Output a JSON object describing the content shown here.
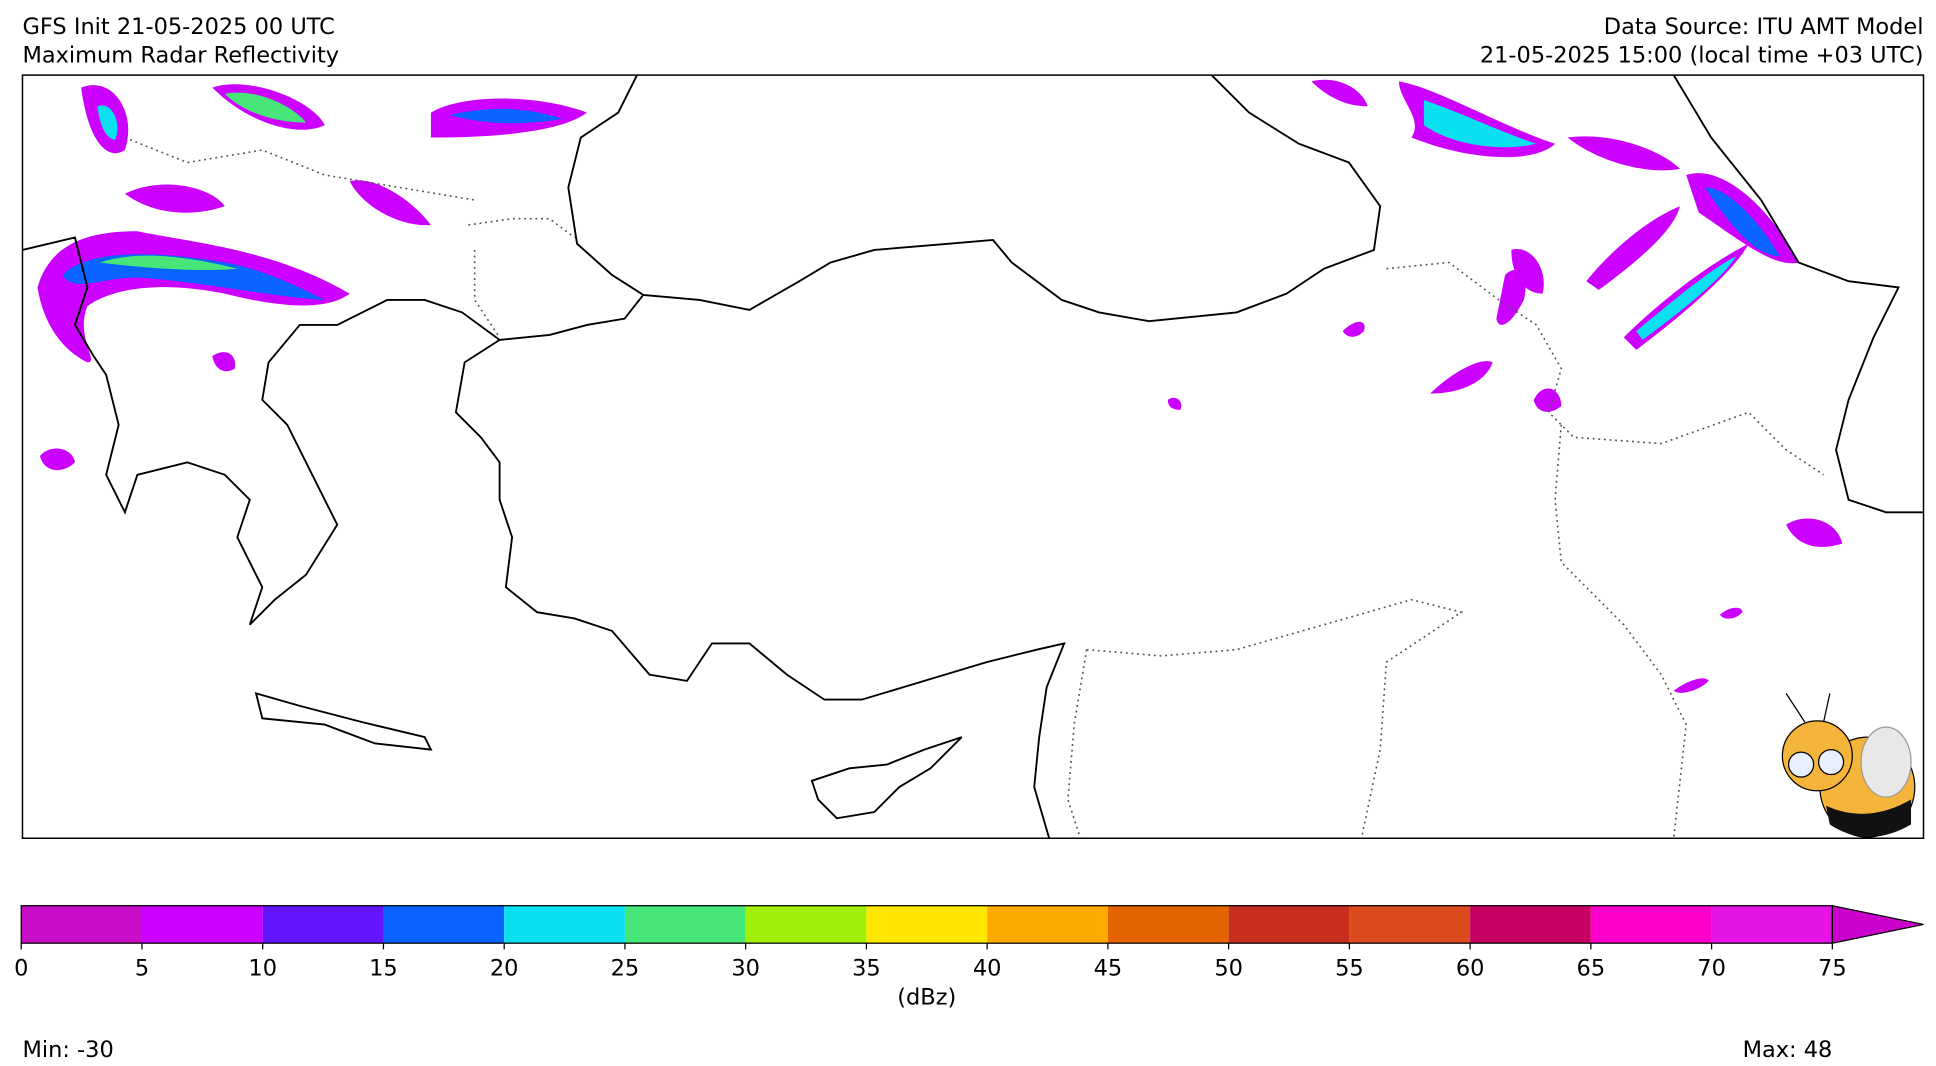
{
  "header": {
    "left_line1": "GFS Init 21-05-2025 00 UTC",
    "left_line2": "Maximum Radar Reflectivity",
    "right_line1": "Data Source: ITU AMT Model",
    "right_line2": "21-05-2025 15:00 (local time +03 UTC)"
  },
  "colorbar": {
    "ticks": [
      0,
      5,
      10,
      15,
      20,
      25,
      30,
      35,
      40,
      45,
      50,
      55,
      60,
      65,
      70,
      75
    ],
    "colors": [
      "#c80cc8",
      "#cc00ff",
      "#6414ff",
      "#0a64ff",
      "#0ae1f0",
      "#46e678",
      "#a0f00a",
      "#ffe600",
      "#ffaa00",
      "#e66400",
      "#c82d1e",
      "#dc4b1e",
      "#c80064",
      "#ff00cc",
      "#e614e6"
    ],
    "over_color": "#cc00cc",
    "label": "(dBz)"
  },
  "footer": {
    "min_label": "Min: -30",
    "max_label": "Max: 48"
  }
}
